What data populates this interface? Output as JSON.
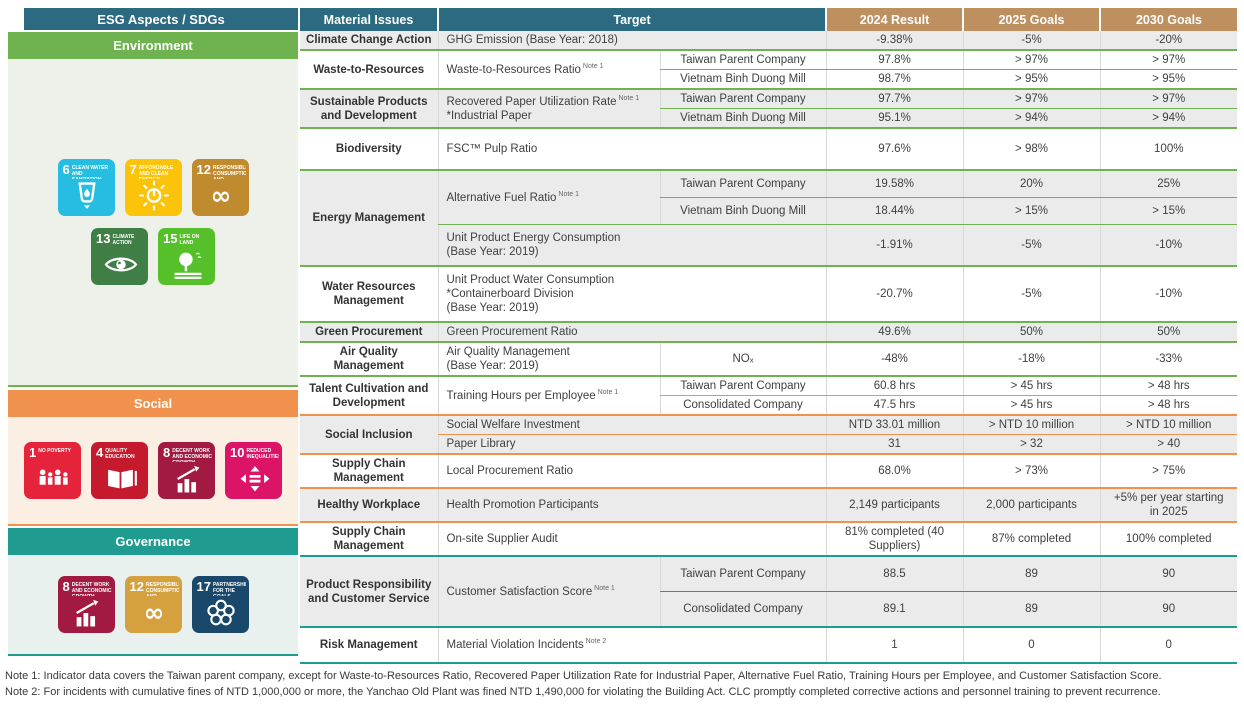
{
  "esg_panel": {
    "header": "ESG Aspects / SDGs",
    "header_color": "#2B6A80",
    "sections": [
      {
        "id": "environment",
        "label": "Environment",
        "band_color": "#6FB351",
        "panel_color": "#EEF1EA",
        "icon_rows": [
          [
            {
              "number": "6",
              "title": "Clean Water and Sanitation",
              "color": "#26BDE2",
              "glyph": "water-glass"
            },
            {
              "number": "7",
              "title": "Affordable and Clean Energy",
              "color": "#FCC30B",
              "glyph": "sun-energy"
            },
            {
              "number": "12",
              "title": "Responsible Consumption and Production",
              "color": "#BF8B2E",
              "glyph": "infinity-loop"
            }
          ],
          [
            {
              "number": "13",
              "title": "Climate Action",
              "color": "#3F7E44",
              "glyph": "eye-globe"
            },
            {
              "number": "15",
              "title": "Life on Land",
              "color": "#56C02B",
              "glyph": "tree-land"
            }
          ]
        ]
      },
      {
        "id": "social",
        "label": "Social",
        "band_color": "#F0914D",
        "panel_color": "#FBEFE4",
        "icon_rows": [
          [
            {
              "number": "1",
              "title": "No Poverty",
              "color": "#E5243B",
              "glyph": "family-group"
            },
            {
              "number": "4",
              "title": "Quality Education",
              "color": "#C5192D",
              "glyph": "open-book"
            },
            {
              "number": "8",
              "title": "Decent Work and Economic Growth",
              "color": "#A21942",
              "glyph": "growth-chart"
            },
            {
              "number": "10",
              "title": "Reduced Inequalities",
              "color": "#DD1367",
              "glyph": "equality-arrows"
            }
          ]
        ]
      },
      {
        "id": "governance",
        "label": "Governance",
        "band_color": "#209B90",
        "panel_color": "#E9F1EF",
        "icon_rows": [
          [
            {
              "number": "8",
              "title": "Decent Work and Economic Growth",
              "color": "#A21942",
              "glyph": "growth-chart"
            },
            {
              "number": "12",
              "title": "Responsible Consumption and Production",
              "color": "#D5A13E",
              "glyph": "infinity-loop"
            },
            {
              "number": "17",
              "title": "Partnerships for the Goals",
              "color": "#19486A",
              "glyph": "circles-ring"
            }
          ]
        ]
      }
    ]
  },
  "table": {
    "header_colors": {
      "dark": "#2B6A80",
      "tan": "#BE8F5F"
    },
    "columns": [
      "Material Issues",
      "Target",
      "2024 Result",
      "2025 Goals",
      "2030 Goals"
    ],
    "groups": [
      {
        "section": "environment",
        "material": "Climate Change Action",
        "shade": true,
        "targets": [
          {
            "lines": [
              "GHG Emission (Base Year: 2018)"
            ],
            "note": null,
            "rows": [
              {
                "sub": null,
                "results": [
                  "-9.38%",
                  "-5%",
                  "-20%"
                ]
              }
            ]
          }
        ]
      },
      {
        "section": "environment",
        "material": "Waste-to-Resources",
        "shade": false,
        "targets": [
          {
            "lines": [
              "Waste-to-Resources Ratio"
            ],
            "note": "Note 1",
            "rows": [
              {
                "sub": "Taiwan Parent Company",
                "results": [
                  "97.8%",
                  "> 97%",
                  "> 97%"
                ]
              },
              {
                "sub": "Vietnam Binh Duong Mill",
                "results": [
                  "98.7%",
                  "> 95%",
                  "> 95%"
                ]
              }
            ]
          }
        ]
      },
      {
        "section": "environment",
        "material": "Sustainable Products and Development",
        "shade": true,
        "targets": [
          {
            "lines": [
              "Recovered Paper Utilization Rate",
              "*Industrial Paper"
            ],
            "note": "Note 1",
            "rows": [
              {
                "sub": "Taiwan Parent Company",
                "results": [
                  "97.7%",
                  "> 97%",
                  "> 97%"
                ]
              },
              {
                "sub": "Vietnam Binh Duong Mill",
                "results": [
                  "95.1%",
                  "> 94%",
                  "> 94%"
                ]
              }
            ]
          }
        ]
      },
      {
        "section": "environment",
        "material": "Biodiversity",
        "shade": false,
        "pad": "xl",
        "targets": [
          {
            "lines": [
              "FSC™ Pulp Ratio"
            ],
            "note": null,
            "rows": [
              {
                "sub": null,
                "results": [
                  "97.6%",
                  "> 98%",
                  "100%"
                ]
              }
            ]
          }
        ]
      },
      {
        "section": "environment",
        "material": "Energy Management",
        "shade": true,
        "targets": [
          {
            "lines": [
              "Alternative Fuel Ratio"
            ],
            "note": "Note 1",
            "pad": "md",
            "rows": [
              {
                "sub": "Taiwan Parent Company",
                "results": [
                  "19.58%",
                  "20%",
                  "25%"
                ]
              },
              {
                "sub": "Vietnam Binh Duong Mill",
                "results": [
                  "18.44%",
                  "> 15%",
                  "> 15%"
                ]
              }
            ]
          },
          {
            "lines": [
              "Unit Product Energy Consumption",
              "(Base Year: 2019)"
            ],
            "note": null,
            "pad": "md",
            "rows": [
              {
                "sub": null,
                "results": [
                  "-1.91%",
                  "-5%",
                  "-10%"
                ]
              }
            ]
          }
        ]
      },
      {
        "section": "environment",
        "material": "Water Resources Management",
        "shade": false,
        "targets": [
          {
            "lines": [
              "Unit Product Water Consumption",
              "*Containerboard Division",
              "(Base Year: 2019)"
            ],
            "note": null,
            "pad": "md",
            "rows": [
              {
                "sub": null,
                "results": [
                  "-20.7%",
                  "-5%",
                  "-10%"
                ]
              }
            ]
          }
        ]
      },
      {
        "section": "environment",
        "material": "Green Procurement",
        "shade": true,
        "targets": [
          {
            "lines": [
              "Green Procurement Ratio"
            ],
            "note": null,
            "rows": [
              {
                "sub": null,
                "results": [
                  "49.6%",
                  "50%",
                  "50%"
                ]
              }
            ]
          }
        ]
      },
      {
        "section": "environment",
        "material": "Air Quality Management",
        "shade": false,
        "targets": [
          {
            "lines": [
              "Air Quality Management",
              "(Base Year: 2019)"
            ],
            "note": null,
            "rows": [
              {
                "sub": "NOₓ",
                "results": [
                  "-48%",
                  "-18%",
                  "-33%"
                ]
              }
            ]
          }
        ]
      },
      {
        "section": "social",
        "material": "Talent Cultivation and Development",
        "shade": false,
        "targets": [
          {
            "lines": [
              "Training Hours per Employee"
            ],
            "note": "Note 1",
            "rows": [
              {
                "sub": "Taiwan Parent Company",
                "results": [
                  "60.8 hrs",
                  "> 45 hrs",
                  "> 48 hrs"
                ]
              },
              {
                "sub": "Consolidated Company",
                "results": [
                  "47.5 hrs",
                  "> 45 hrs",
                  "> 48 hrs"
                ]
              }
            ]
          }
        ]
      },
      {
        "section": "social",
        "material": "Social Inclusion",
        "shade": true,
        "targets": [
          {
            "lines": [
              "Social Welfare Investment"
            ],
            "note": null,
            "rows": [
              {
                "sub": null,
                "results": [
                  "NTD 33.01 million",
                  "> NTD 10 million",
                  "> NTD 10 million"
                ]
              }
            ]
          },
          {
            "lines": [
              "Paper Library"
            ],
            "note": null,
            "rows": [
              {
                "sub": null,
                "results": [
                  "31",
                  "> 32",
                  "> 40"
                ]
              }
            ]
          }
        ]
      },
      {
        "section": "social",
        "material": "Supply Chain Management",
        "shade": false,
        "targets": [
          {
            "lines": [
              "Local Procurement Ratio"
            ],
            "note": null,
            "rows": [
              {
                "sub": null,
                "results": [
                  "68.0%",
                  "> 73%",
                  "> 75%"
                ]
              }
            ]
          }
        ]
      },
      {
        "section": "social",
        "material": "Healthy Workplace",
        "shade": true,
        "targets": [
          {
            "lines": [
              "Health Promotion Participants"
            ],
            "note": null,
            "rows": [
              {
                "sub": null,
                "results": [
                  "2,149 participants",
                  "2,000 participants",
                  "+5% per year starting in 2025"
                ]
              }
            ]
          }
        ]
      },
      {
        "section": "governance",
        "material": "Supply Chain Management",
        "shade": false,
        "targets": [
          {
            "lines": [
              "On-site Supplier Audit"
            ],
            "note": null,
            "rows": [
              {
                "sub": null,
                "results": [
                  "81% completed (40 Suppliers)",
                  "87% completed",
                  "100% completed"
                ]
              }
            ]
          }
        ]
      },
      {
        "section": "governance",
        "material": "Product Responsibility and Customer Service",
        "shade": true,
        "targets": [
          {
            "lines": [
              "Customer Satisfaction Score"
            ],
            "note": "Note 1",
            "pad": "lg",
            "rows": [
              {
                "sub": "Taiwan Parent Company",
                "results": [
                  "88.5",
                  "89",
                  "90"
                ]
              },
              {
                "sub": "Consolidated Company",
                "results": [
                  "89.1",
                  "89",
                  "90"
                ]
              }
            ]
          }
        ]
      },
      {
        "section": "governance",
        "material": "Risk Management",
        "shade": false,
        "pad": "lg",
        "targets": [
          {
            "lines": [
              "Material Violation Incidents"
            ],
            "note": "Note 2",
            "rows": [
              {
                "sub": null,
                "results": [
                  "1",
                  "0",
                  "0"
                ]
              }
            ]
          }
        ]
      }
    ]
  },
  "notes": [
    {
      "label": "Note 1:",
      "text": "Indicator data covers the Taiwan parent company, except for Waste-to-Resources Ratio, Recovered Paper Utilization Rate for Industrial Paper, Alternative Fuel Ratio, Training Hours per Employee, and Customer Satisfaction Score."
    },
    {
      "label": "Note 2:",
      "text": "For incidents with cumulative fines of NTD 1,000,000 or more, the Yanchao Old Plant was fined NTD 1,490,000 for violating the Building Act. CLC promptly completed corrective actions and personnel training to prevent recurrence."
    }
  ]
}
